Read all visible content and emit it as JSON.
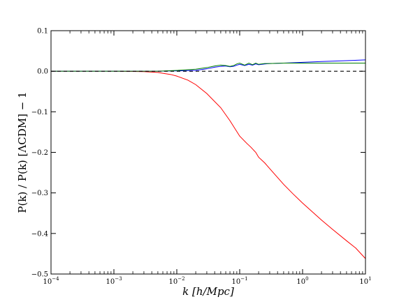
{
  "chart_data": {
    "type": "line",
    "xlabel": "k  [h/Mpc]",
    "ylabel": "P(k) / P(k) [ΛCDM] − 1",
    "xscale": "log",
    "xlim": [
      0.0001,
      10
    ],
    "ylim": [
      -0.5,
      0.1
    ],
    "x_ticks": [
      {
        "value": 0.0001,
        "base": "10",
        "exp": "−4"
      },
      {
        "value": 0.001,
        "base": "10",
        "exp": "−3"
      },
      {
        "value": 0.01,
        "base": "10",
        "exp": "−2"
      },
      {
        "value": 0.1,
        "base": "10",
        "exp": "−1"
      },
      {
        "value": 1,
        "base": "10",
        "exp": "0"
      },
      {
        "value": 10,
        "base": "10",
        "exp": "1"
      }
    ],
    "y_ticks": [
      {
        "value": 0.1,
        "label": "0.1"
      },
      {
        "value": 0.0,
        "label": "0.0"
      },
      {
        "value": -0.1,
        "label": "−0.1"
      },
      {
        "value": -0.2,
        "label": "−0.2"
      },
      {
        "value": -0.3,
        "label": "−0.3"
      },
      {
        "value": -0.4,
        "label": "−0.4"
      },
      {
        "value": -0.5,
        "label": "−0.5"
      }
    ],
    "grid": false,
    "legend": "none",
    "series": [
      {
        "color": "#ff0000",
        "x": [
          0.0001,
          0.001,
          0.002,
          0.003,
          0.004,
          0.005,
          0.006,
          0.008,
          0.01,
          0.015,
          0.02,
          0.03,
          0.05,
          0.07,
          0.1,
          0.13,
          0.15,
          0.18,
          0.2,
          0.25,
          0.3,
          0.4,
          0.5,
          0.7,
          1,
          2,
          3,
          5,
          7,
          10
        ],
        "y": [
          0.0,
          0.0,
          -0.0005,
          -0.001,
          -0.002,
          -0.003,
          -0.005,
          -0.008,
          -0.012,
          -0.022,
          -0.033,
          -0.055,
          -0.09,
          -0.122,
          -0.16,
          -0.178,
          -0.187,
          -0.2,
          -0.212,
          -0.226,
          -0.24,
          -0.262,
          -0.279,
          -0.302,
          -0.325,
          -0.367,
          -0.39,
          -0.418,
          -0.436,
          -0.462
        ]
      },
      {
        "color": "#0000ff",
        "x": [
          0.0001,
          0.001,
          0.005,
          0.01,
          0.02,
          0.03,
          0.04,
          0.05,
          0.06,
          0.07,
          0.08,
          0.09,
          0.1,
          0.12,
          0.14,
          0.16,
          0.18,
          0.2,
          0.25,
          0.3,
          0.5,
          1,
          2,
          5,
          10
        ],
        "y": [
          0.0,
          0.0,
          0.0,
          0.001,
          0.002,
          0.006,
          0.01,
          0.012,
          0.013,
          0.011,
          0.012,
          0.015,
          0.017,
          0.014,
          0.017,
          0.015,
          0.018,
          0.016,
          0.018,
          0.019,
          0.02,
          0.022,
          0.024,
          0.026,
          0.028
        ]
      },
      {
        "color": "#008000",
        "x": [
          0.0001,
          0.001,
          0.005,
          0.01,
          0.02,
          0.03,
          0.04,
          0.05,
          0.06,
          0.07,
          0.08,
          0.09,
          0.1,
          0.12,
          0.14,
          0.16,
          0.18,
          0.2,
          0.25,
          0.3,
          0.5,
          1,
          2,
          5,
          10
        ],
        "y": [
          0.0,
          0.0,
          0.0,
          0.002,
          0.005,
          0.009,
          0.013,
          0.015,
          0.014,
          0.012,
          0.014,
          0.018,
          0.02,
          0.015,
          0.02,
          0.016,
          0.02,
          0.017,
          0.019,
          0.019,
          0.02,
          0.02,
          0.02,
          0.02,
          0.02
        ]
      },
      {
        "color": "#000000",
        "dashed": true,
        "x": [
          0.0001,
          10
        ],
        "y": [
          0.0,
          0.0
        ]
      }
    ]
  }
}
